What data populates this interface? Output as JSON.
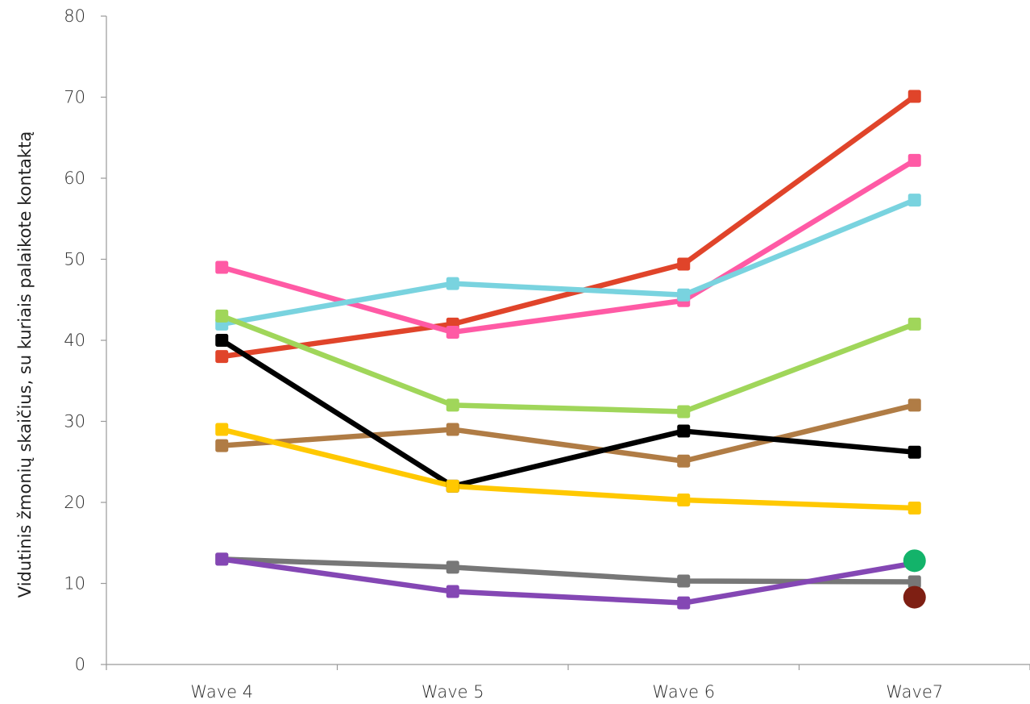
{
  "chart_data": {
    "type": "line",
    "title": "",
    "xlabel": "",
    "ylabel": "Vidutinis žmonių skaičius, su kuriais palaikote kontaktą",
    "ylim": [
      0,
      80
    ],
    "yticks": [
      0,
      10,
      20,
      30,
      40,
      50,
      60,
      70,
      80
    ],
    "categories": [
      "Wave 4",
      "Wave 5",
      "Wave 6",
      "Wave7"
    ],
    "grid": false,
    "legend": "none",
    "series": [
      {
        "color": "#E0442A",
        "marker": "square",
        "values": [
          38,
          42,
          49.4,
          70.1
        ]
      },
      {
        "color": "#FF5AA5",
        "marker": "square",
        "values": [
          49,
          41,
          44.9,
          62.2
        ]
      },
      {
        "color": "#79D3DF",
        "marker": "square",
        "values": [
          42,
          47,
          45.6,
          57.3
        ]
      },
      {
        "color": "#A0D65A",
        "marker": "square",
        "values": [
          43,
          32,
          31.2,
          42
        ]
      },
      {
        "color": "#B07C45",
        "marker": "square",
        "values": [
          27,
          29,
          25.1,
          32
        ]
      },
      {
        "color": "#000000",
        "marker": "square",
        "values": [
          40,
          22,
          28.8,
          26.2
        ]
      },
      {
        "color": "#FFC800",
        "marker": "square",
        "values": [
          29,
          22,
          20.3,
          19.3
        ]
      },
      {
        "color": "#777777",
        "marker": "square",
        "values": [
          13,
          12,
          10.3,
          10.2
        ]
      },
      {
        "color": "#8447B4",
        "marker": "square",
        "values": [
          13,
          9,
          7.6,
          12.5
        ]
      }
    ],
    "extra_points": [
      {
        "x": "Wave7",
        "y": 12.8,
        "color": "#13B36A",
        "marker": "circle"
      },
      {
        "x": "Wave7",
        "y": 8.3,
        "color": "#7E1F13",
        "marker": "circle"
      }
    ]
  }
}
